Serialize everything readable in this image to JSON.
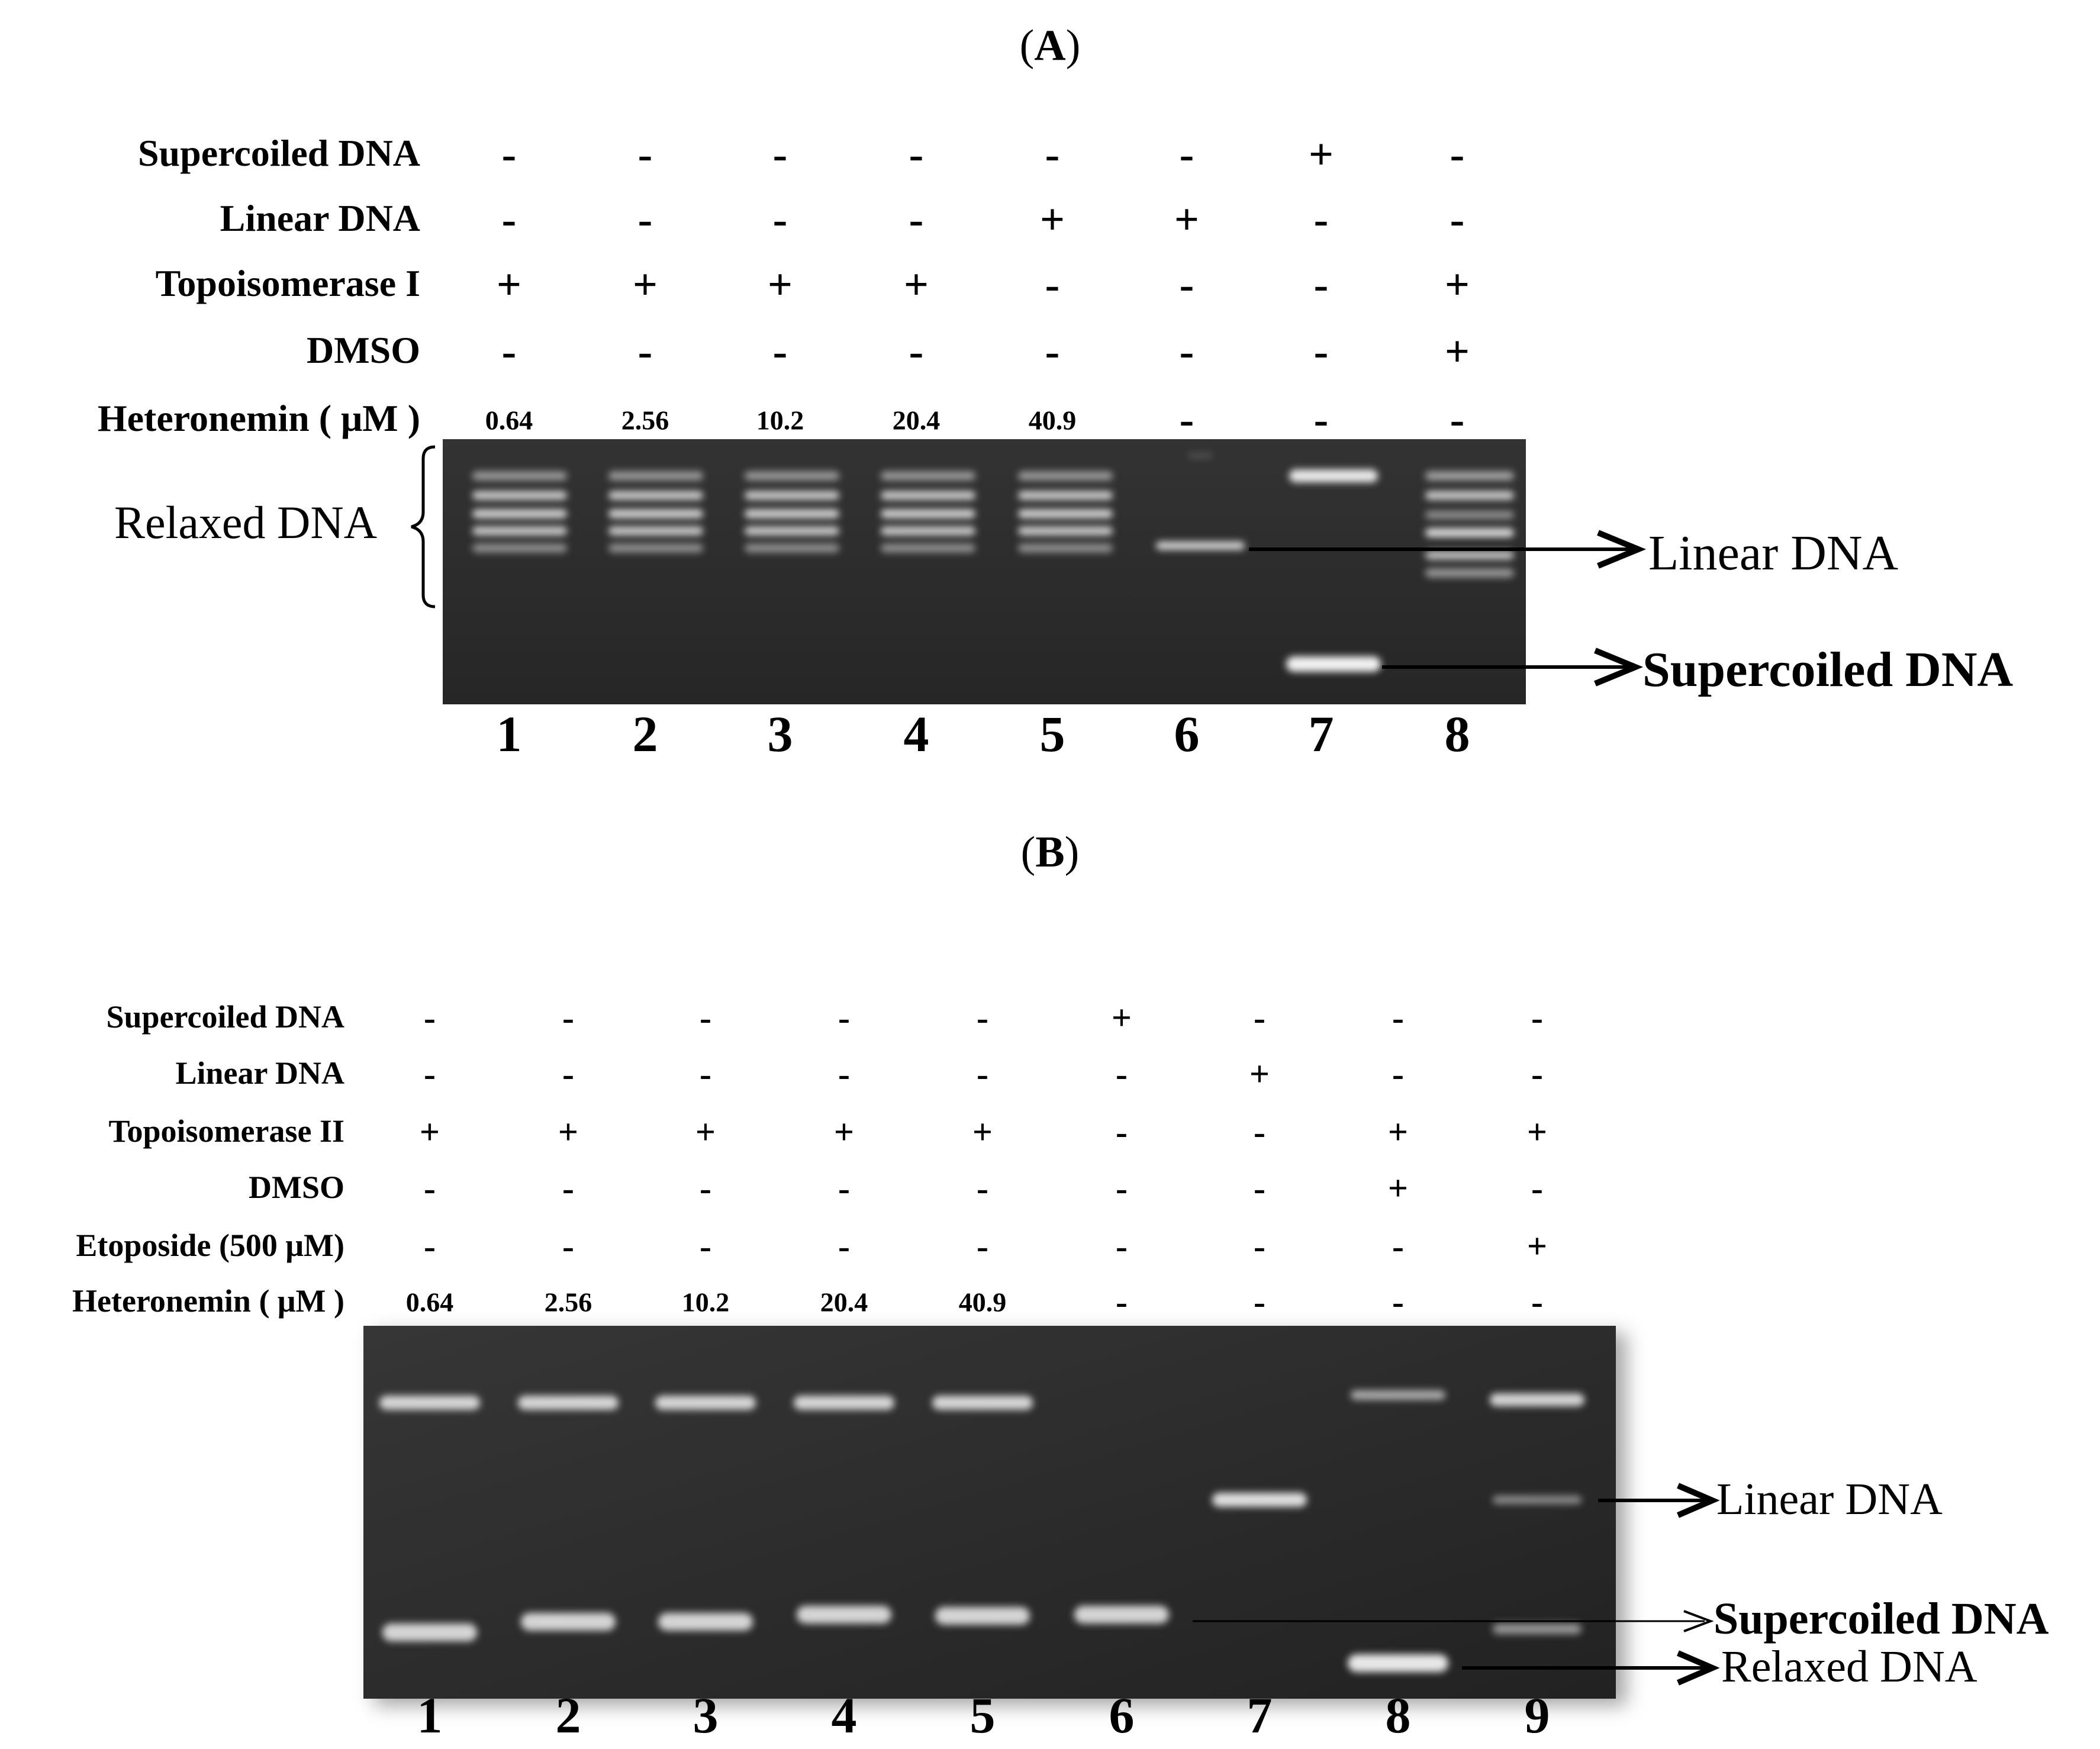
{
  "panelA": {
    "label": "A",
    "rows": [
      {
        "label": "Supercoiled DNA",
        "values": [
          "-",
          "-",
          "-",
          "-",
          "-",
          "-",
          "+",
          "-"
        ]
      },
      {
        "label": "Linear DNA",
        "values": [
          "-",
          "-",
          "-",
          "-",
          "+",
          "+",
          "-",
          "-"
        ]
      },
      {
        "label": "Topoisomerase I",
        "values": [
          "+",
          "+",
          "+",
          "+",
          "-",
          "-",
          "-",
          "+"
        ]
      },
      {
        "label": "DMSO",
        "values": [
          "-",
          "-",
          "-",
          "-",
          "-",
          "-",
          "-",
          "+"
        ]
      },
      {
        "label": "Heteronemin  ( μM )",
        "values": [
          "0.64",
          "2.56",
          "10.2",
          "20.4",
          "40.9",
          "-",
          "-",
          "-"
        ]
      }
    ],
    "lanes": [
      "1",
      "2",
      "3",
      "4",
      "5",
      "6",
      "7",
      "8"
    ],
    "annotations": {
      "left": "Relaxed DNA",
      "linear": "Linear DNA",
      "supercoiled": "Supercoiled DNA"
    }
  },
  "panelB": {
    "label": "B",
    "rows": [
      {
        "label": "Supercoiled DNA",
        "values": [
          "-",
          "-",
          "-",
          "-",
          "-",
          "+",
          "-",
          "-",
          "-"
        ]
      },
      {
        "label": "Linear DNA",
        "values": [
          "-",
          "-",
          "-",
          "-",
          "-",
          "-",
          "+",
          "-",
          "-"
        ]
      },
      {
        "label": "Topoisomerase II",
        "values": [
          "+",
          "+",
          "+",
          "+",
          "+",
          "-",
          "-",
          "+",
          "+"
        ]
      },
      {
        "label": "DMSO",
        "values": [
          "-",
          "-",
          "-",
          "-",
          "-",
          "-",
          "-",
          "+",
          "-"
        ]
      },
      {
        "label": "Etoposide  (500  μM)",
        "values": [
          "-",
          "-",
          "-",
          "-",
          "-",
          "-",
          "-",
          "-",
          "+"
        ]
      },
      {
        "label": "Heteronemin ( μM )",
        "values": [
          "0.64",
          "2.56",
          "10.2",
          "20.4",
          "40.9",
          "-",
          "-",
          "-",
          "-"
        ]
      }
    ],
    "lanes": [
      "1",
      "2",
      "3",
      "4",
      "5",
      "6",
      "7",
      "8",
      "9"
    ],
    "annotations": {
      "linear": "Linear DNA",
      "supercoiled": "Supercoiled DNA",
      "relaxed": "Relaxed DNA"
    }
  }
}
